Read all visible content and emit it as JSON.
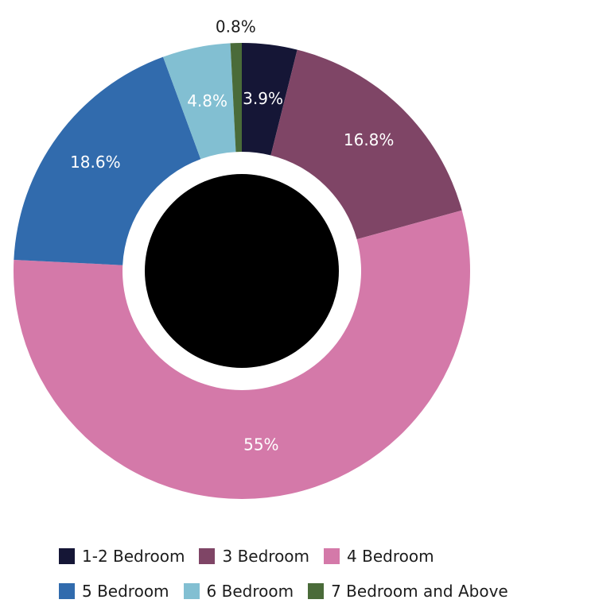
{
  "chart_data": {
    "type": "pie",
    "style": "donut",
    "categories": [
      "1-2 Bedroom",
      "3 Bedroom",
      "4 Bedroom",
      "5 Bedroom",
      "6 Bedroom",
      "7 Bedroom and Above"
    ],
    "values": [
      3.9,
      16.8,
      55,
      18.6,
      4.8,
      0.8
    ],
    "data_labels": [
      "3.9%",
      "16.8%",
      "55%",
      "18.6%",
      "4.8%",
      "0.8%"
    ],
    "colors": [
      "#151636",
      "#7f4566",
      "#d479a9",
      "#316bad",
      "#82bfd2",
      "#4a6b39"
    ],
    "center_color": "#000000",
    "legend_position": "bottom"
  },
  "legend": {
    "row1": [
      {
        "label": "1-2 Bedroom",
        "color": "#151636"
      },
      {
        "label": "3 Bedroom",
        "color": "#7f4566"
      },
      {
        "label": "4 Bedroom",
        "color": "#d479a9"
      }
    ],
    "row2": [
      {
        "label": "5 Bedroom",
        "color": "#316bad"
      },
      {
        "label": "6 Bedroom",
        "color": "#82bfd2"
      },
      {
        "label": "7 Bedroom and Above",
        "color": "#4a6b39"
      }
    ]
  }
}
